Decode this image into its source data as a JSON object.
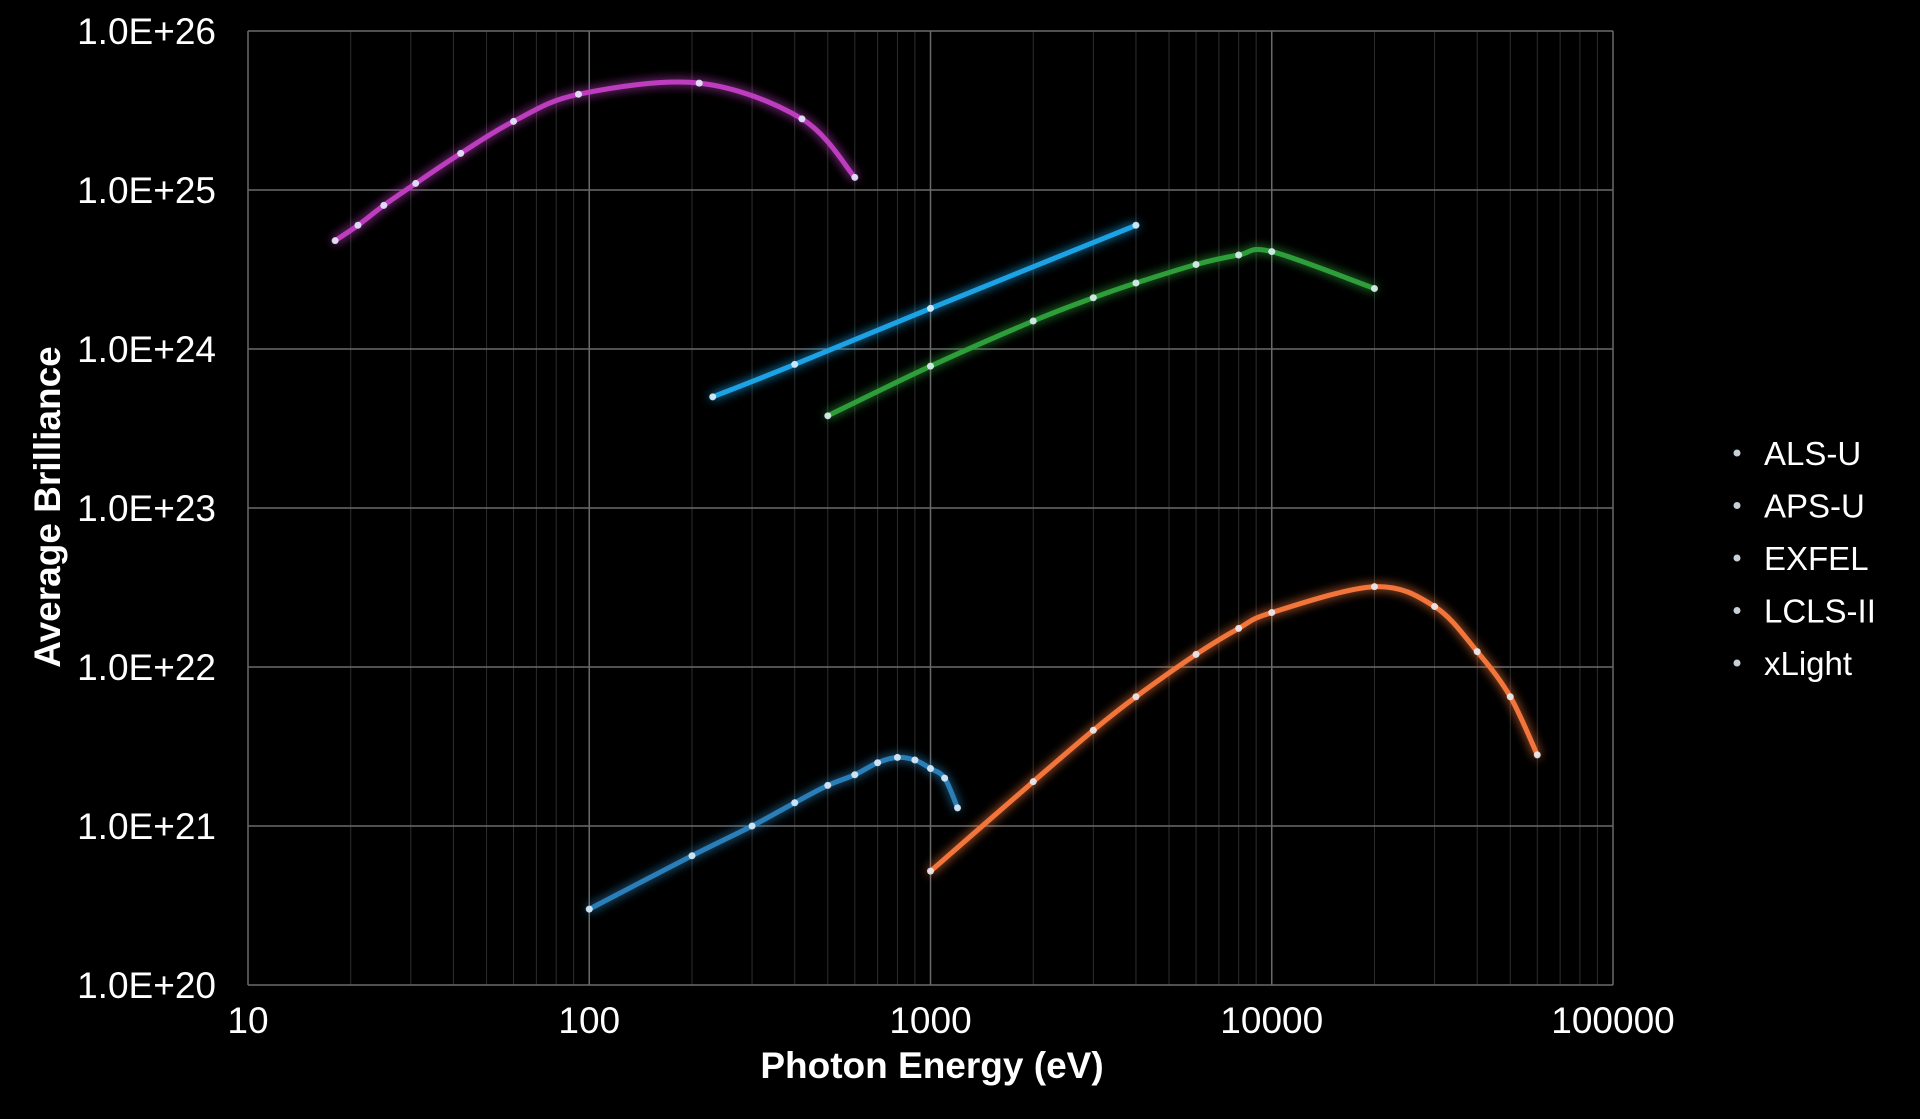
{
  "chart_data": {
    "type": "line",
    "title": "",
    "xlabel": "Photon Energy (eV)",
    "ylabel": "Average Brilliance",
    "x_scale": "log",
    "y_scale": "log",
    "xlim": [
      10,
      100000
    ],
    "ylim": [
      1e+20,
      1e+26
    ],
    "x_ticks": [
      10,
      100,
      1000,
      10000,
      100000
    ],
    "x_tick_labels": [
      "10",
      "100",
      "1000",
      "10000",
      "100000"
    ],
    "y_ticks": [
      1e+20,
      1e+21,
      1e+22,
      1e+23,
      1e+24,
      1e+25,
      1e+26
    ],
    "y_tick_labels": [
      "1.0E+20",
      "1.0E+21",
      "1.0E+22",
      "1.0E+23",
      "1.0E+24",
      "1.0E+25",
      "1.0E+26"
    ],
    "grid": true,
    "legend_position": "right",
    "series": [
      {
        "name": "ALS-U",
        "color": "#2a7fb8",
        "x": [
          100,
          200,
          300,
          400,
          500,
          600,
          700,
          800,
          900,
          1000,
          1100,
          1200
        ],
        "y": [
          3e+20,
          6.5e+20,
          1e+21,
          1.4e+21,
          1.8e+21,
          2.1e+21,
          2.5e+21,
          2.7e+21,
          2.6e+21,
          2.3e+21,
          2e+21,
          1.3e+21
        ]
      },
      {
        "name": "APS-U",
        "color": "#f2763a",
        "x": [
          1000,
          2000,
          3000,
          4000,
          6000,
          8000,
          10000,
          20000,
          30000,
          40000,
          50000,
          60000
        ],
        "y": [
          5.2e+20,
          1.9e+21,
          4e+21,
          6.5e+21,
          1.2e+22,
          1.75e+22,
          2.2e+22,
          3.2e+22,
          2.4e+22,
          1.25e+22,
          6.5e+21,
          2.8e+21
        ]
      },
      {
        "name": "EXFEL",
        "color": "#2e9e3a",
        "x": [
          500,
          1000,
          2000,
          3000,
          4000,
          6000,
          8000,
          10000,
          20000
        ],
        "y": [
          3.8e+23,
          7.8e+23,
          1.5e+24,
          2.1e+24,
          2.6e+24,
          3.4e+24,
          3.9e+24,
          4.1e+24,
          2.4e+24
        ]
      },
      {
        "name": "LCLS-II",
        "color": "#1ea3e6",
        "x": [
          230,
          400,
          1000,
          4000
        ],
        "y": [
          5e+23,
          8e+23,
          1.8e+24,
          6e+24
        ]
      },
      {
        "name": "xLight",
        "color": "#bd3cbf",
        "x": [
          18,
          21,
          25,
          31,
          42,
          60,
          93,
          210,
          420,
          600
        ],
        "y": [
          4.8e+24,
          6e+24,
          8e+24,
          1.1e+25,
          1.7e+25,
          2.7e+25,
          4e+25,
          4.7e+25,
          2.8e+25,
          1.2e+25
        ]
      }
    ]
  }
}
